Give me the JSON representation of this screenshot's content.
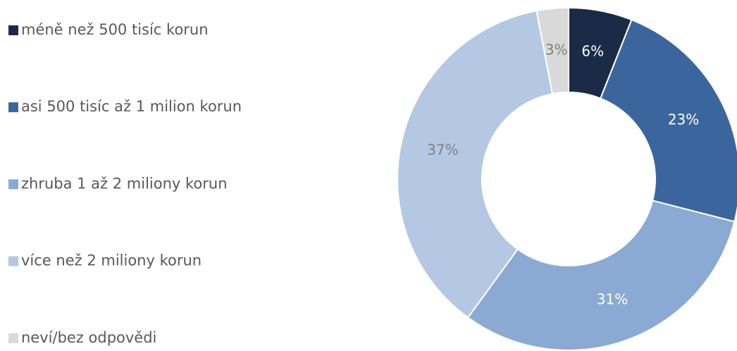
{
  "chart_data": {
    "type": "donut",
    "categories": [
      "méně než 500 tisíc korun",
      "asi 500 tisíc až 1 milion korun",
      "zhruba 1 až 2 miliony korun",
      "více než 2 miliony korun",
      "neví/bez odpovědi"
    ],
    "values": [
      6,
      23,
      31,
      37,
      3
    ],
    "value_labels": [
      "6%",
      "23%",
      "31%",
      "37%",
      "3%"
    ],
    "colors": [
      "#1b2b47",
      "#3b669d",
      "#8aaad3",
      "#b4c8e4",
      "#d9d9d9"
    ],
    "label_colors": [
      "#ffffff",
      "#ffffff",
      "#ffffff",
      "#7f7f7f",
      "#7f7f7f"
    ],
    "legend": "left"
  }
}
